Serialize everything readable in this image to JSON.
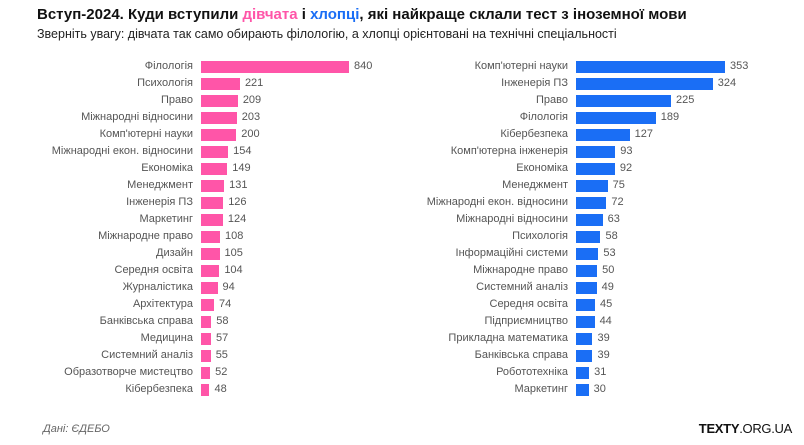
{
  "title": {
    "part1": "Вступ-2024. Куди вступили ",
    "girls": "дівчата",
    "and": " і ",
    "boys": "хлопці",
    "part2": ", які найкраще склали тест з іноземної мови"
  },
  "subtitle": "Зверніть увагу: дівчата так само обирають філологію, а хлопці орієнтовані на технічні спеціальності",
  "source": "Дані: ЄДЕБО",
  "logo": {
    "bold": "TEXTY",
    "rest": ".ORG.UA"
  },
  "colors": {
    "girls": "#ff55a8",
    "boys": "#1a6ef5"
  },
  "chart_data": [
    {
      "type": "bar",
      "orientation": "horizontal",
      "name": "дівчата",
      "color": "#ff55a8",
      "categories": [
        "Філологія",
        "Психологія",
        "Право",
        "Міжнародні відносини",
        "Комп'ютерні науки",
        "Міжнародні екон. відносини",
        "Економіка",
        "Менеджмент",
        "Інженерія ПЗ",
        "Маркетинг",
        "Міжнародне право",
        "Дизайн",
        "Середня освіта",
        "Журналістика",
        "Архітектура",
        "Банківська справа",
        "Медицина",
        "Системний аналіз",
        "Образотворче мистецтво",
        "Кібербезпека"
      ],
      "values": [
        840,
        221,
        209,
        203,
        200,
        154,
        149,
        131,
        126,
        124,
        108,
        105,
        104,
        94,
        74,
        58,
        57,
        55,
        52,
        48
      ],
      "xlim": [
        0,
        840
      ]
    },
    {
      "type": "bar",
      "orientation": "horizontal",
      "name": "хлопці",
      "color": "#1a6ef5",
      "categories": [
        "Комп'ютерні науки",
        "Інженерія ПЗ",
        "Право",
        "Філологія",
        "Кібербезпека",
        "Комп'ютерна інженерія",
        "Економіка",
        "Менеджмент",
        "Міжнародні екон. відносини",
        "Міжнародні відносини",
        "Психологія",
        "Інформаційні системи",
        "Міжнародне право",
        "Системний аналіз",
        "Середня освіта",
        "Підприємництво",
        "Прикладна математика",
        "Банківська справа",
        "Робототехніка",
        "Маркетинг"
      ],
      "values": [
        353,
        324,
        225,
        189,
        127,
        93,
        92,
        75,
        72,
        63,
        58,
        53,
        50,
        49,
        45,
        44,
        39,
        39,
        31,
        30
      ],
      "xlim": [
        0,
        353
      ]
    }
  ]
}
